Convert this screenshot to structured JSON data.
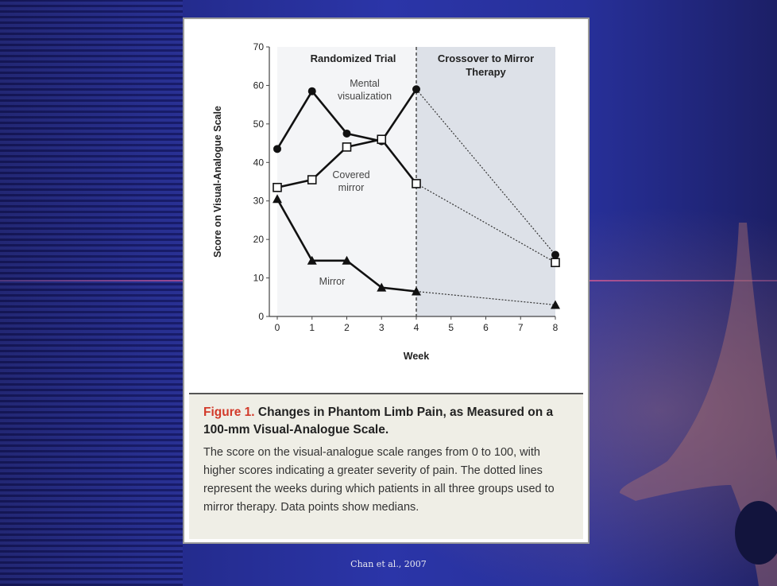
{
  "chart_data": {
    "type": "line",
    "xlabel": "Week",
    "ylabel": "Score on Visual-Analogue Scale",
    "xticks": [
      0,
      1,
      2,
      3,
      4,
      5,
      6,
      7,
      8
    ],
    "yticks": [
      0,
      10,
      20,
      30,
      40,
      50,
      60,
      70
    ],
    "xlim": [
      0,
      8
    ],
    "ylim": [
      0,
      70
    ],
    "regions": [
      {
        "label": "Randomized Trial",
        "x_range": [
          0,
          4
        ]
      },
      {
        "label": "Crossover to Mirror Therapy",
        "x_range": [
          4,
          8
        ]
      }
    ],
    "series": [
      {
        "name": "Mental visualization",
        "marker": "circle-filled",
        "x": [
          0,
          1,
          2,
          3,
          4
        ],
        "y": [
          43.5,
          58.5,
          47.5,
          45.5,
          59
        ],
        "crossover_x": [
          4,
          8
        ],
        "crossover_y": [
          59,
          16
        ]
      },
      {
        "name": "Covered mirror",
        "marker": "square-open",
        "x": [
          0,
          1,
          2,
          3,
          4
        ],
        "y": [
          33.5,
          35.5,
          44,
          46,
          34.5
        ],
        "crossover_x": [
          4,
          8
        ],
        "crossover_y": [
          34.5,
          14
        ]
      },
      {
        "name": "Mirror",
        "marker": "triangle-filled",
        "x": [
          0,
          1,
          2,
          3,
          4
        ],
        "y": [
          30.5,
          14.5,
          14.5,
          7.5,
          6.5
        ],
        "crossover_x": [
          4,
          8
        ],
        "crossover_y": [
          6.5,
          3
        ]
      }
    ],
    "annotations": {
      "mental": [
        "Mental",
        "visualization"
      ],
      "covered": [
        "Covered",
        "mirror"
      ],
      "mirror": [
        "Mirror"
      ]
    },
    "region_titles": {
      "left": [
        "Randomized Trial"
      ],
      "right": [
        "Crossover to Mirror",
        "Therapy"
      ]
    }
  },
  "caption": {
    "label": "Figure 1.",
    "title": "Changes in Phantom Limb Pain, as Measured on a 100-mm Visual-Analogue Scale.",
    "text": "The score on the visual-analogue scale ranges from 0 to 100, with higher scores indicating a greater severity of pain. The dotted lines represent the weeks during which patients in all three groups used to mirror therapy. Data points show medians."
  },
  "credit": "Chan et al., 2007"
}
